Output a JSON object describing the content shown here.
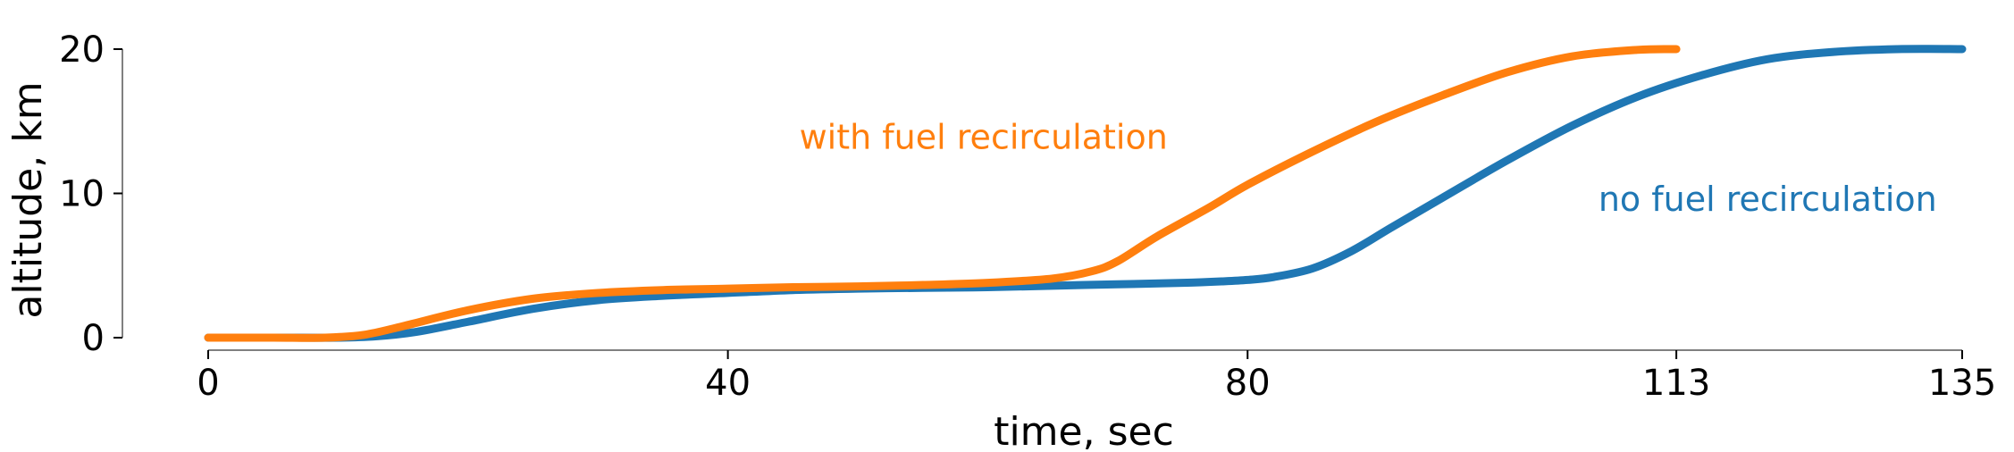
{
  "chart_data": {
    "type": "line",
    "xlabel": "time, sec",
    "ylabel": "altitude, km",
    "xlim": [
      0,
      135
    ],
    "ylim": [
      0,
      20
    ],
    "xticks": [
      0,
      40,
      80,
      113,
      135
    ],
    "yticks": [
      0,
      10,
      20
    ],
    "grid": false,
    "series": [
      {
        "name": "no fuel recirculation",
        "color": "#1f77b4",
        "x": [
          0,
          5,
          10,
          13,
          16,
          20,
          25,
          30,
          35,
          40,
          45,
          50,
          55,
          60,
          65,
          70,
          75,
          78,
          80,
          82,
          85,
          88,
          91,
          95,
          100,
          105,
          110,
          115,
          120,
          125,
          130,
          135
        ],
        "y": [
          0,
          0,
          0,
          0.1,
          0.4,
          1.1,
          2.0,
          2.6,
          2.9,
          3.1,
          3.3,
          3.4,
          3.45,
          3.5,
          3.6,
          3.7,
          3.8,
          3.9,
          4.0,
          4.2,
          4.8,
          6.0,
          7.6,
          9.7,
          12.3,
          14.7,
          16.7,
          18.2,
          19.3,
          19.8,
          20.0,
          20.0
        ]
      },
      {
        "name": "with fuel recirculation",
        "color": "#ff7f0e",
        "x": [
          0,
          5,
          9,
          12,
          15,
          20,
          25,
          30,
          35,
          40,
          45,
          50,
          55,
          60,
          65,
          68,
          70,
          73,
          77,
          80,
          85,
          90,
          95,
          100,
          105,
          110,
          113
        ],
        "y": [
          0,
          0,
          0,
          0.2,
          0.8,
          1.9,
          2.7,
          3.1,
          3.3,
          3.4,
          3.5,
          3.55,
          3.65,
          3.8,
          4.1,
          4.6,
          5.3,
          7.0,
          9.0,
          10.6,
          12.9,
          15.0,
          16.8,
          18.4,
          19.5,
          19.95,
          20.0
        ]
      }
    ]
  }
}
